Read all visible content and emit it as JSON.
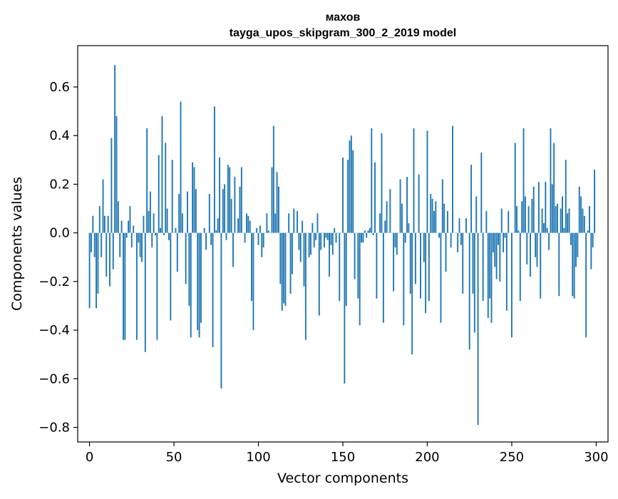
{
  "chart_data": {
    "type": "bar",
    "title": "махов",
    "subtitle": "tayga_upos_skipgram_300_2_2019 model",
    "xlabel": "Vector components",
    "ylabel": "Components values",
    "xlim": [
      -7,
      307
    ],
    "ylim": [
      -0.86,
      0.77
    ],
    "xticks": [
      0,
      50,
      100,
      150,
      200,
      250,
      300
    ],
    "xtick_labels": [
      "0",
      "50",
      "100",
      "150",
      "200",
      "250",
      "300"
    ],
    "yticks": [
      -0.8,
      -0.6,
      -0.4,
      -0.2,
      0.0,
      0.2,
      0.4,
      0.6
    ],
    "ytick_labels": [
      "−0.8",
      "−0.6",
      "−0.4",
      "−0.2",
      "0.0",
      "0.2",
      "0.4",
      "0.6"
    ],
    "bar_color": "#1f77b4",
    "grid": false,
    "legend": "none",
    "x": "0..299",
    "values": [
      -0.31,
      -0.08,
      0.07,
      -0.1,
      -0.31,
      -0.25,
      0.11,
      -0.1,
      0.22,
      0.07,
      -0.18,
      0.07,
      -0.22,
      0.39,
      -0.15,
      0.69,
      0.48,
      0.13,
      -0.1,
      0.05,
      -0.44,
      -0.44,
      -0.02,
      0.05,
      0.11,
      -0.06,
      0.03,
      0.0,
      -0.44,
      -0.04,
      -0.1,
      -0.12,
      0.07,
      -0.49,
      0.43,
      0.09,
      0.17,
      -0.06,
      0.08,
      -0.01,
      -0.44,
      0.32,
      0.02,
      0.48,
      -0.01,
      0.37,
      0.1,
      -0.03,
      -0.36,
      0.3,
      0.0,
      0.02,
      -0.16,
      0.16,
      0.54,
      0.08,
      0.0,
      -0.21,
      0.17,
      -0.3,
      -0.43,
      0.29,
      0.27,
      0.18,
      -0.4,
      -0.43,
      -0.37,
      0.0,
      0.02,
      -0.07,
      0.0,
      0.16,
      -0.05,
      -0.47,
      0.52,
      0.01,
      0.06,
      0.31,
      -0.64,
      0.18,
      0.2,
      -0.03,
      0.28,
      0.27,
      0.14,
      -0.14,
      0.23,
      0.0,
      0.06,
      0.19,
      0.27,
      0.0,
      -0.04,
      0.08,
      0.07,
      0.05,
      -0.28,
      -0.4,
      0.0,
      0.02,
      -0.05,
      0.03,
      -0.1,
      -0.06,
      0.0,
      0.08,
      0.01,
      0.0,
      0.27,
      0.44,
      0.08,
      0.25,
      0.19,
      -0.21,
      -0.32,
      -0.29,
      -0.3,
      0.0,
      0.08,
      -0.25,
      -0.17,
      0.1,
      0.0,
      0.09,
      -0.07,
      -0.12,
      0.05,
      -0.22,
      -0.44,
      0.0,
      -0.1,
      -0.09,
      0.04,
      -0.06,
      -0.03,
      0.08,
      -0.34,
      -0.07,
      0.0,
      -0.06,
      -0.02,
      -0.03,
      -0.18,
      -0.05,
      -0.09,
      0.02,
      -0.04,
      0.0,
      -0.28,
      0.0,
      0.31,
      -0.62,
      -0.3,
      0.3,
      0.38,
      0.4,
      0.34,
      -0.19,
      0.0,
      -0.27,
      -0.38,
      -0.04,
      -0.04,
      0.01,
      -0.02,
      0.01,
      0.02,
      0.43,
      -0.01,
      0.29,
      -0.27,
      0.0,
      0.08,
      0.41,
      -0.37,
      0.05,
      0.13,
      0.0,
      0.18,
      0.0,
      -0.24,
      -0.06,
      -0.09,
      0.0,
      0.22,
      0.12,
      -0.38,
      -0.04,
      0.23,
      0.04,
      -0.25,
      -0.5,
      0.43,
      -0.21,
      0.0,
      0.24,
      -0.27,
      0.0,
      -0.12,
      -0.33,
      0.42,
      -0.28,
      0.16,
      0.14,
      0.09,
      0.13,
      0.0,
      -0.02,
      -0.37,
      0.22,
      0.12,
      -0.16,
      0.09,
      0.0,
      -0.06,
      0.44,
      0.0,
      0.0,
      -0.08,
      0.06,
      -0.05,
      -0.25,
      0.0,
      0.06,
      0.0,
      -0.48,
      0.28,
      -0.25,
      -0.41,
      0.15,
      -0.79,
      0.0,
      0.33,
      -0.28,
      0.0,
      0.09,
      -0.35,
      -0.27,
      -0.37,
      -0.08,
      -0.14,
      -0.19,
      -0.05,
      -0.2,
      0.1,
      -0.08,
      -0.02,
      -0.32,
      0.09,
      0.0,
      -0.43,
      0.0,
      0.37,
      0.11,
      0.01,
      -0.28,
      0.13,
      0.43,
      0.15,
      -0.13,
      0.11,
      -0.18,
      0.14,
      0.19,
      -0.1,
      -0.14,
      0.21,
      -0.27,
      0.1,
      0.04,
      0.21,
      0.02,
      -0.07,
      0.43,
      0.2,
      0.37,
      0.11,
      0.12,
      -0.26,
      0.1,
      0.15,
      0.02,
      0.3,
      0.08,
      0.1,
      -0.05,
      -0.26,
      -0.27,
      -0.14,
      -0.1,
      0.19,
      0.15,
      0.1,
      0.07,
      -0.43,
      0.01,
      0.11,
      -0.15,
      -0.06,
      0.26
    ]
  }
}
